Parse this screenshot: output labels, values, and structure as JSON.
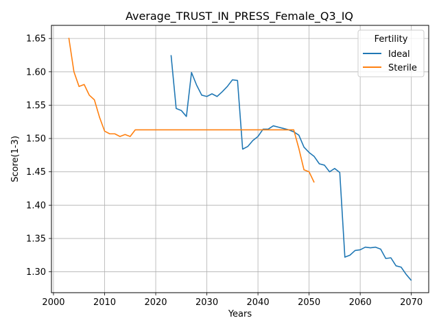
{
  "chart_data": {
    "type": "line",
    "title": "Average_TRUST_IN_PRESS_Female_Q3_IQ",
    "xlabel": "Years",
    "ylabel": "Score(1-3)",
    "xlim": [
      1999.6,
      2073.4
    ],
    "ylim": [
      1.2687,
      1.6697
    ],
    "xticks": [
      2000,
      2010,
      2020,
      2030,
      2040,
      2050,
      2060,
      2070
    ],
    "yticks": [
      1.3,
      1.35,
      1.4,
      1.45,
      1.5,
      1.55,
      1.6,
      1.65
    ],
    "grid": true,
    "legend": {
      "title": "Fertility",
      "position": "top-right"
    },
    "series": [
      {
        "name": "Ideal",
        "color": "#1f77b4",
        "x": [
          2023,
          2024,
          2025,
          2026,
          2027,
          2028,
          2029,
          2030,
          2031,
          2032,
          2033,
          2034,
          2035,
          2036,
          2037,
          2038,
          2039,
          2040,
          2041,
          2042,
          2043,
          2044,
          2045,
          2046,
          2047,
          2048,
          2049,
          2050,
          2051,
          2052,
          2053,
          2054,
          2055,
          2056,
          2057,
          2058,
          2059,
          2060,
          2061,
          2062,
          2063,
          2064,
          2065,
          2066,
          2067,
          2068,
          2069,
          2070
        ],
        "y": [
          1.625,
          1.545,
          1.542,
          1.533,
          1.599,
          1.58,
          1.565,
          1.563,
          1.567,
          1.563,
          1.57,
          1.578,
          1.588,
          1.587,
          1.484,
          1.488,
          1.497,
          1.503,
          1.514,
          1.514,
          1.519,
          1.517,
          1.515,
          1.513,
          1.51,
          1.505,
          1.487,
          1.479,
          1.473,
          1.462,
          1.46,
          1.45,
          1.455,
          1.449,
          1.322,
          1.325,
          1.332,
          1.333,
          1.337,
          1.336,
          1.337,
          1.334,
          1.32,
          1.321,
          1.309,
          1.307,
          1.296,
          1.287
        ]
      },
      {
        "name": "Sterile",
        "color": "#ff7f0e",
        "x": [
          2003,
          2004,
          2005,
          2006,
          2007,
          2008,
          2009,
          2010,
          2011,
          2012,
          2013,
          2014,
          2015,
          2016,
          2017,
          2018,
          2019,
          2020,
          2021,
          2022,
          2023,
          2024,
          2025,
          2026,
          2027,
          2028,
          2029,
          2030,
          2031,
          2032,
          2033,
          2034,
          2035,
          2036,
          2037,
          2038,
          2039,
          2040,
          2041,
          2042,
          2043,
          2044,
          2045,
          2046,
          2047,
          2048,
          2049,
          2050,
          2051
        ],
        "y": [
          1.651,
          1.6,
          1.578,
          1.581,
          1.565,
          1.558,
          1.532,
          1.511,
          1.507,
          1.507,
          1.503,
          1.506,
          1.503,
          1.513,
          1.513,
          1.513,
          1.513,
          1.513,
          1.513,
          1.513,
          1.513,
          1.513,
          1.513,
          1.513,
          1.513,
          1.513,
          1.513,
          1.513,
          1.513,
          1.513,
          1.513,
          1.513,
          1.513,
          1.513,
          1.513,
          1.513,
          1.513,
          1.513,
          1.513,
          1.513,
          1.513,
          1.513,
          1.513,
          1.513,
          1.513,
          1.485,
          1.453,
          1.45,
          1.434
        ]
      }
    ]
  }
}
